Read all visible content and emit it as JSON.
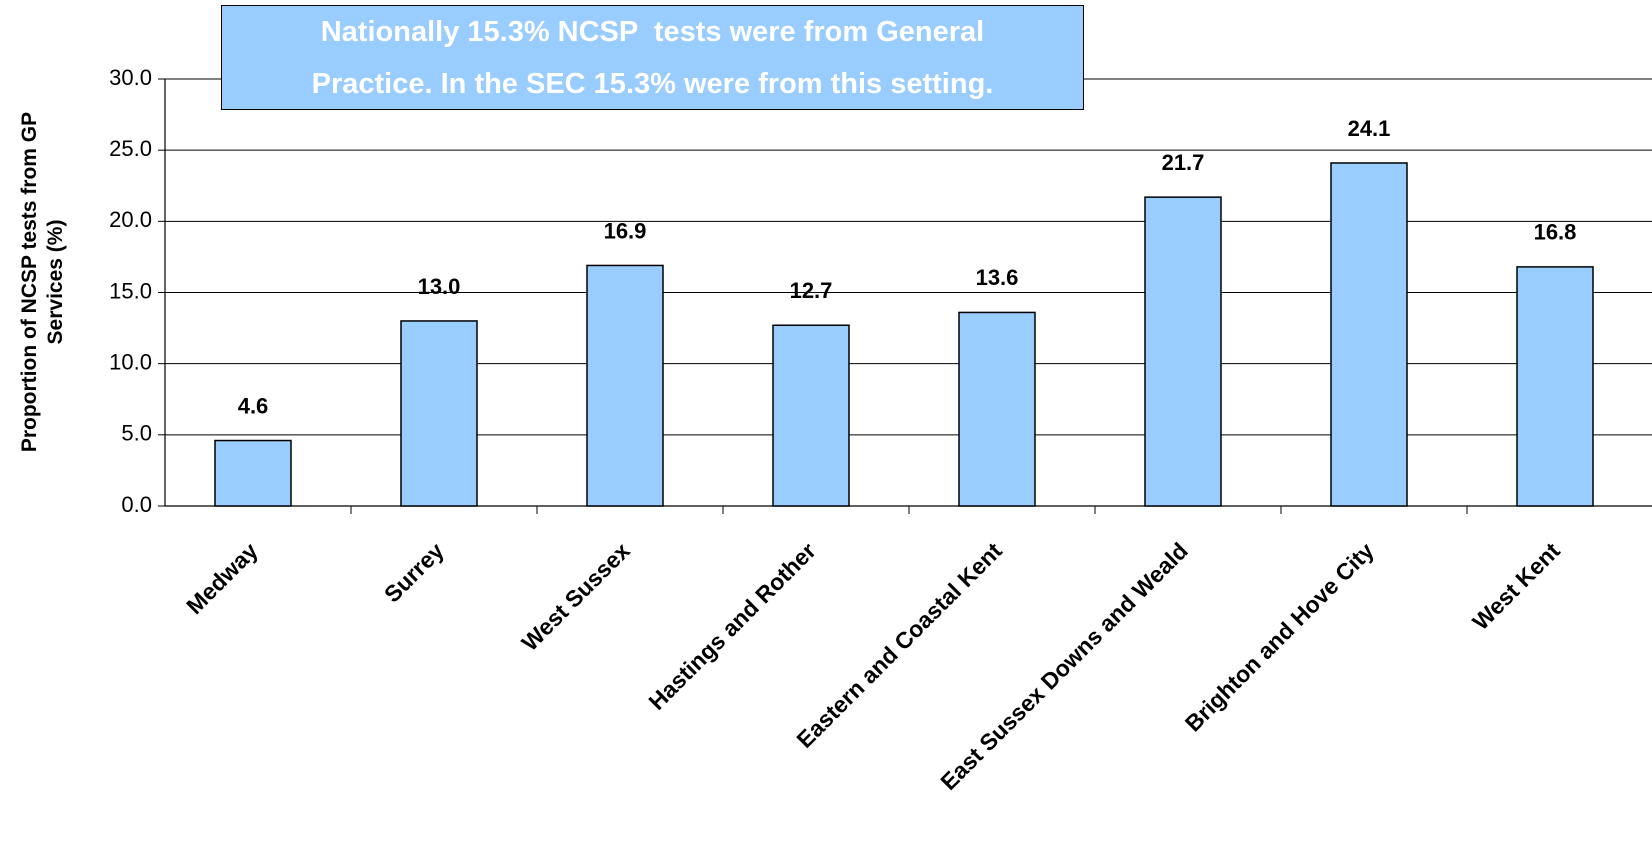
{
  "chart_data": {
    "type": "bar",
    "annotation": "Nationally 15.3% NCSP  tests were from General Practice. In the SEC 15.3% were from this setting.",
    "y_label": "Proportion of NCSP tests from GP Services (%)",
    "categories": [
      "Medway",
      "Surrey",
      "West Sussex",
      "Hastings and Rother",
      "Eastern and Coastal Kent",
      "East Sussex Downs and Weald",
      "Brighton and Hove City",
      "West Kent"
    ],
    "values": [
      4.6,
      13.0,
      16.9,
      12.7,
      13.6,
      21.7,
      24.1,
      16.8
    ],
    "value_labels": [
      "4.6",
      "13.0",
      "16.9",
      "12.7",
      "13.6",
      "21.7",
      "24.1",
      "16.8"
    ],
    "color": "#99ccff",
    "ylim": [
      0,
      30
    ],
    "yticks": [
      {
        "value": 0,
        "label": "0.0"
      },
      {
        "value": 5,
        "label": "5.0"
      },
      {
        "value": 10,
        "label": "10.0"
      },
      {
        "value": 15,
        "label": "15.0"
      },
      {
        "value": 20,
        "label": "20.0"
      },
      {
        "value": 25,
        "label": "25.0"
      },
      {
        "value": 30,
        "label": "30.0"
      }
    ],
    "grid": true
  }
}
